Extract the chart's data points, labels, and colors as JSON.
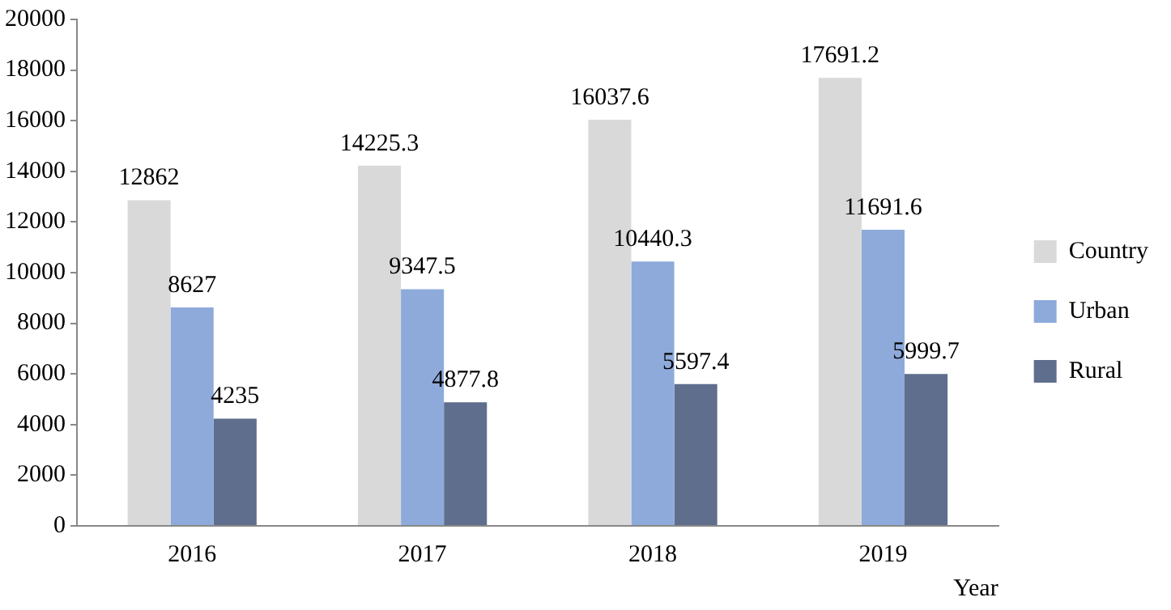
{
  "chart_data": {
    "type": "bar",
    "xlabel": "Year",
    "categories": [
      "2016",
      "2017",
      "2018",
      "2019"
    ],
    "series": [
      {
        "name": "Country",
        "color": "#d9d9d9",
        "values": [
          12862,
          14225.3,
          16037.6,
          17691.2
        ]
      },
      {
        "name": "Urban",
        "color": "#8eaadb",
        "values": [
          8627,
          9347.5,
          10440.3,
          11691.6
        ]
      },
      {
        "name": "Rural",
        "color": "#5f6e8c",
        "values": [
          4235,
          4877.8,
          5597.4,
          5999.7
        ]
      }
    ],
    "ylim": [
      0,
      20000
    ],
    "yticks": [
      0,
      2000,
      4000,
      6000,
      8000,
      10000,
      12000,
      14000,
      16000,
      18000,
      20000
    ],
    "grid": false,
    "legend": "right",
    "data_labels": true
  }
}
